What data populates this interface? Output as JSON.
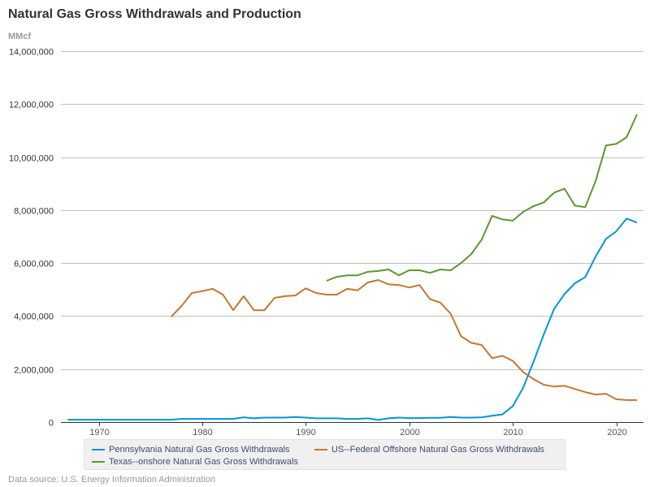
{
  "title": "Natural Gas Gross Withdrawals and Production",
  "unit_label": "MMcf",
  "source": "Data source: U.S. Energy Information Administration",
  "chart_data": {
    "type": "line",
    "title": "Natural Gas Gross Withdrawals and Production",
    "xlabel": "",
    "ylabel": "MMcf",
    "xlim": [
      1967,
      2022
    ],
    "ylim": [
      0,
      14000000
    ],
    "grid": true,
    "legend_position": "bottom",
    "y_ticks": [
      0,
      2000000,
      4000000,
      6000000,
      8000000,
      10000000,
      12000000,
      14000000
    ],
    "y_tick_labels": [
      "0",
      "2,000,000",
      "4,000,000",
      "6,000,000",
      "8,000,000",
      "10,000,000",
      "12,000,000",
      "14,000,000"
    ],
    "x_ticks": [
      1970,
      1980,
      1990,
      2000,
      2010,
      2020
    ],
    "x_tick_labels": [
      "1970",
      "1980",
      "1990",
      "2000",
      "2010",
      "2020"
    ],
    "series": [
      {
        "name": "Pennsylvania Natural Gas Gross Withdrawals",
        "color": "#0096d7",
        "x": [
          1967,
          1968,
          1969,
          1970,
          1971,
          1972,
          1973,
          1974,
          1975,
          1976,
          1977,
          1978,
          1979,
          1980,
          1981,
          1982,
          1983,
          1984,
          1985,
          1986,
          1987,
          1988,
          1989,
          1990,
          1991,
          1992,
          1993,
          1994,
          1995,
          1996,
          1997,
          1998,
          1999,
          2000,
          2001,
          2002,
          2003,
          2004,
          2005,
          2006,
          2007,
          2008,
          2009,
          2010,
          2011,
          2012,
          2013,
          2014,
          2015,
          2016,
          2017,
          2018,
          2019,
          2020,
          2021,
          2022
        ],
        "values": [
          90000,
          90000,
          90000,
          90000,
          90000,
          90000,
          90000,
          90000,
          90000,
          90000,
          90000,
          120000,
          120000,
          120000,
          120000,
          120000,
          120000,
          180000,
          140000,
          170000,
          170000,
          170000,
          190000,
          170000,
          140000,
          140000,
          140000,
          120000,
          120000,
          140000,
          80000,
          140000,
          170000,
          150000,
          150000,
          160000,
          160000,
          190000,
          170000,
          170000,
          180000,
          240000,
          290000,
          600000,
          1290000,
          2270000,
          3310000,
          4280000,
          4830000,
          5240000,
          5470000,
          6240000,
          6910000,
          7200000,
          7680000,
          7530000
        ]
      },
      {
        "name": "US--Federal Offshore Natural Gas Gross Withdrawals",
        "color": "#c0792f",
        "x": [
          1977,
          1978,
          1979,
          1980,
          1981,
          1982,
          1983,
          1984,
          1985,
          1986,
          1987,
          1988,
          1989,
          1990,
          1991,
          1992,
          1993,
          1994,
          1995,
          1996,
          1997,
          1998,
          1999,
          2000,
          2001,
          2002,
          2003,
          2004,
          2005,
          2006,
          2007,
          2008,
          2009,
          2010,
          2011,
          2012,
          2013,
          2014,
          2015,
          2016,
          2017,
          2018,
          2019,
          2020,
          2021,
          2022
        ],
        "values": [
          3970000,
          4380000,
          4870000,
          4940000,
          5030000,
          4810000,
          4220000,
          4750000,
          4220000,
          4220000,
          4690000,
          4750000,
          4780000,
          5050000,
          4870000,
          4810000,
          4810000,
          5030000,
          4970000,
          5270000,
          5360000,
          5200000,
          5170000,
          5080000,
          5170000,
          4640000,
          4510000,
          4090000,
          3240000,
          2990000,
          2910000,
          2410000,
          2500000,
          2310000,
          1890000,
          1620000,
          1410000,
          1340000,
          1370000,
          1250000,
          1130000,
          1040000,
          1070000,
          860000,
          830000,
          830000
        ]
      },
      {
        "name": "Texas--onshore Natural Gas Gross Withdrawals",
        "color": "#5d9732",
        "x": [
          1992,
          1993,
          1994,
          1995,
          1996,
          1997,
          1998,
          1999,
          2000,
          2001,
          2002,
          2003,
          2004,
          2005,
          2006,
          2007,
          2008,
          2009,
          2010,
          2011,
          2012,
          2013,
          2014,
          2015,
          2016,
          2017,
          2018,
          2019,
          2020,
          2021,
          2022
        ],
        "values": [
          5330000,
          5480000,
          5540000,
          5540000,
          5670000,
          5700000,
          5760000,
          5540000,
          5730000,
          5730000,
          5630000,
          5760000,
          5730000,
          6000000,
          6340000,
          6890000,
          7780000,
          7650000,
          7600000,
          7930000,
          8150000,
          8290000,
          8660000,
          8810000,
          8170000,
          8110000,
          9090000,
          10440000,
          10500000,
          10750000,
          11610000
        ]
      }
    ]
  },
  "legend": {
    "items": [
      {
        "label": "Pennsylvania Natural Gas Gross Withdrawals",
        "color": "#0096d7"
      },
      {
        "label": "US--Federal Offshore Natural Gas Gross Withdrawals",
        "color": "#c0792f"
      },
      {
        "label": "Texas--onshore Natural Gas Gross Withdrawals",
        "color": "#5d9732"
      }
    ]
  }
}
